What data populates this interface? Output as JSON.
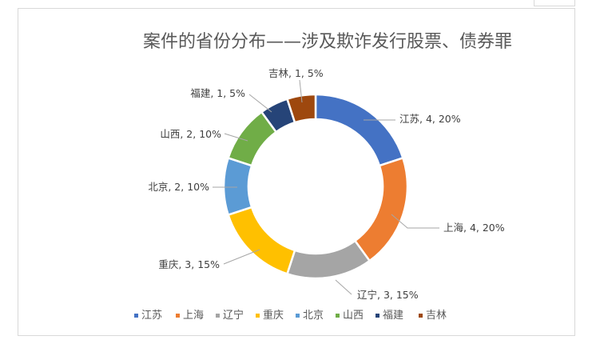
{
  "chart_data": {
    "type": "pie",
    "donut": true,
    "title": "案件的省份分布——涉及欺诈发行股票、债券罪",
    "categories": [
      "江苏",
      "上海",
      "辽宁",
      "重庆",
      "北京",
      "山西",
      "福建",
      "吉林"
    ],
    "values": [
      4,
      4,
      3,
      3,
      2,
      2,
      1,
      1
    ],
    "percents": [
      "20%",
      "20%",
      "15%",
      "15%",
      "10%",
      "10%",
      "5%",
      "5%"
    ],
    "data_labels": [
      "江苏, 4, 20%",
      "上海, 4, 20%",
      "辽宁, 3, 15%",
      "重庆, 3, 15%",
      "北京, 2, 10%",
      "山西, 2, 10%",
      "福建, 1, 5%",
      "吉林, 1, 5%"
    ],
    "colors": [
      "#4472C4",
      "#ED7D31",
      "#A5A5A5",
      "#FFC000",
      "#5B9BD5",
      "#70AD47",
      "#264478",
      "#9E480E"
    ],
    "legend_position": "bottom"
  }
}
